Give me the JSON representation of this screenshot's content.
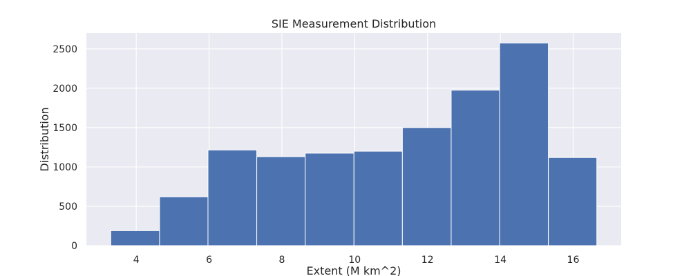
{
  "chart_data": {
    "type": "bar",
    "title": "SIE Measurement Distribution",
    "xlabel": "Extent (M km^2)",
    "ylabel": "Distribution",
    "bins": [
      {
        "x0": 3.3,
        "x1": 4.64,
        "value": 190
      },
      {
        "x0": 4.64,
        "x1": 5.97,
        "value": 620
      },
      {
        "x0": 5.97,
        "x1": 7.31,
        "value": 1215
      },
      {
        "x0": 7.31,
        "x1": 8.64,
        "value": 1130
      },
      {
        "x0": 8.64,
        "x1": 9.98,
        "value": 1175
      },
      {
        "x0": 9.98,
        "x1": 11.31,
        "value": 1200
      },
      {
        "x0": 11.31,
        "x1": 12.65,
        "value": 1500
      },
      {
        "x0": 12.65,
        "x1": 13.98,
        "value": 1975
      },
      {
        "x0": 13.98,
        "x1": 15.32,
        "value": 2575
      },
      {
        "x0": 15.32,
        "x1": 16.65,
        "value": 1120
      }
    ],
    "xticks": [
      4,
      6,
      8,
      10,
      12,
      14,
      16
    ],
    "yticks": [
      0,
      500,
      1000,
      1500,
      2000,
      2500
    ],
    "xlim": [
      2.63,
      17.32
    ],
    "ylim": [
      0,
      2700
    ],
    "grid": true,
    "colors": {
      "bar": "#4c72b0",
      "background": "#eaeaf2",
      "grid": "#ffffff"
    }
  }
}
